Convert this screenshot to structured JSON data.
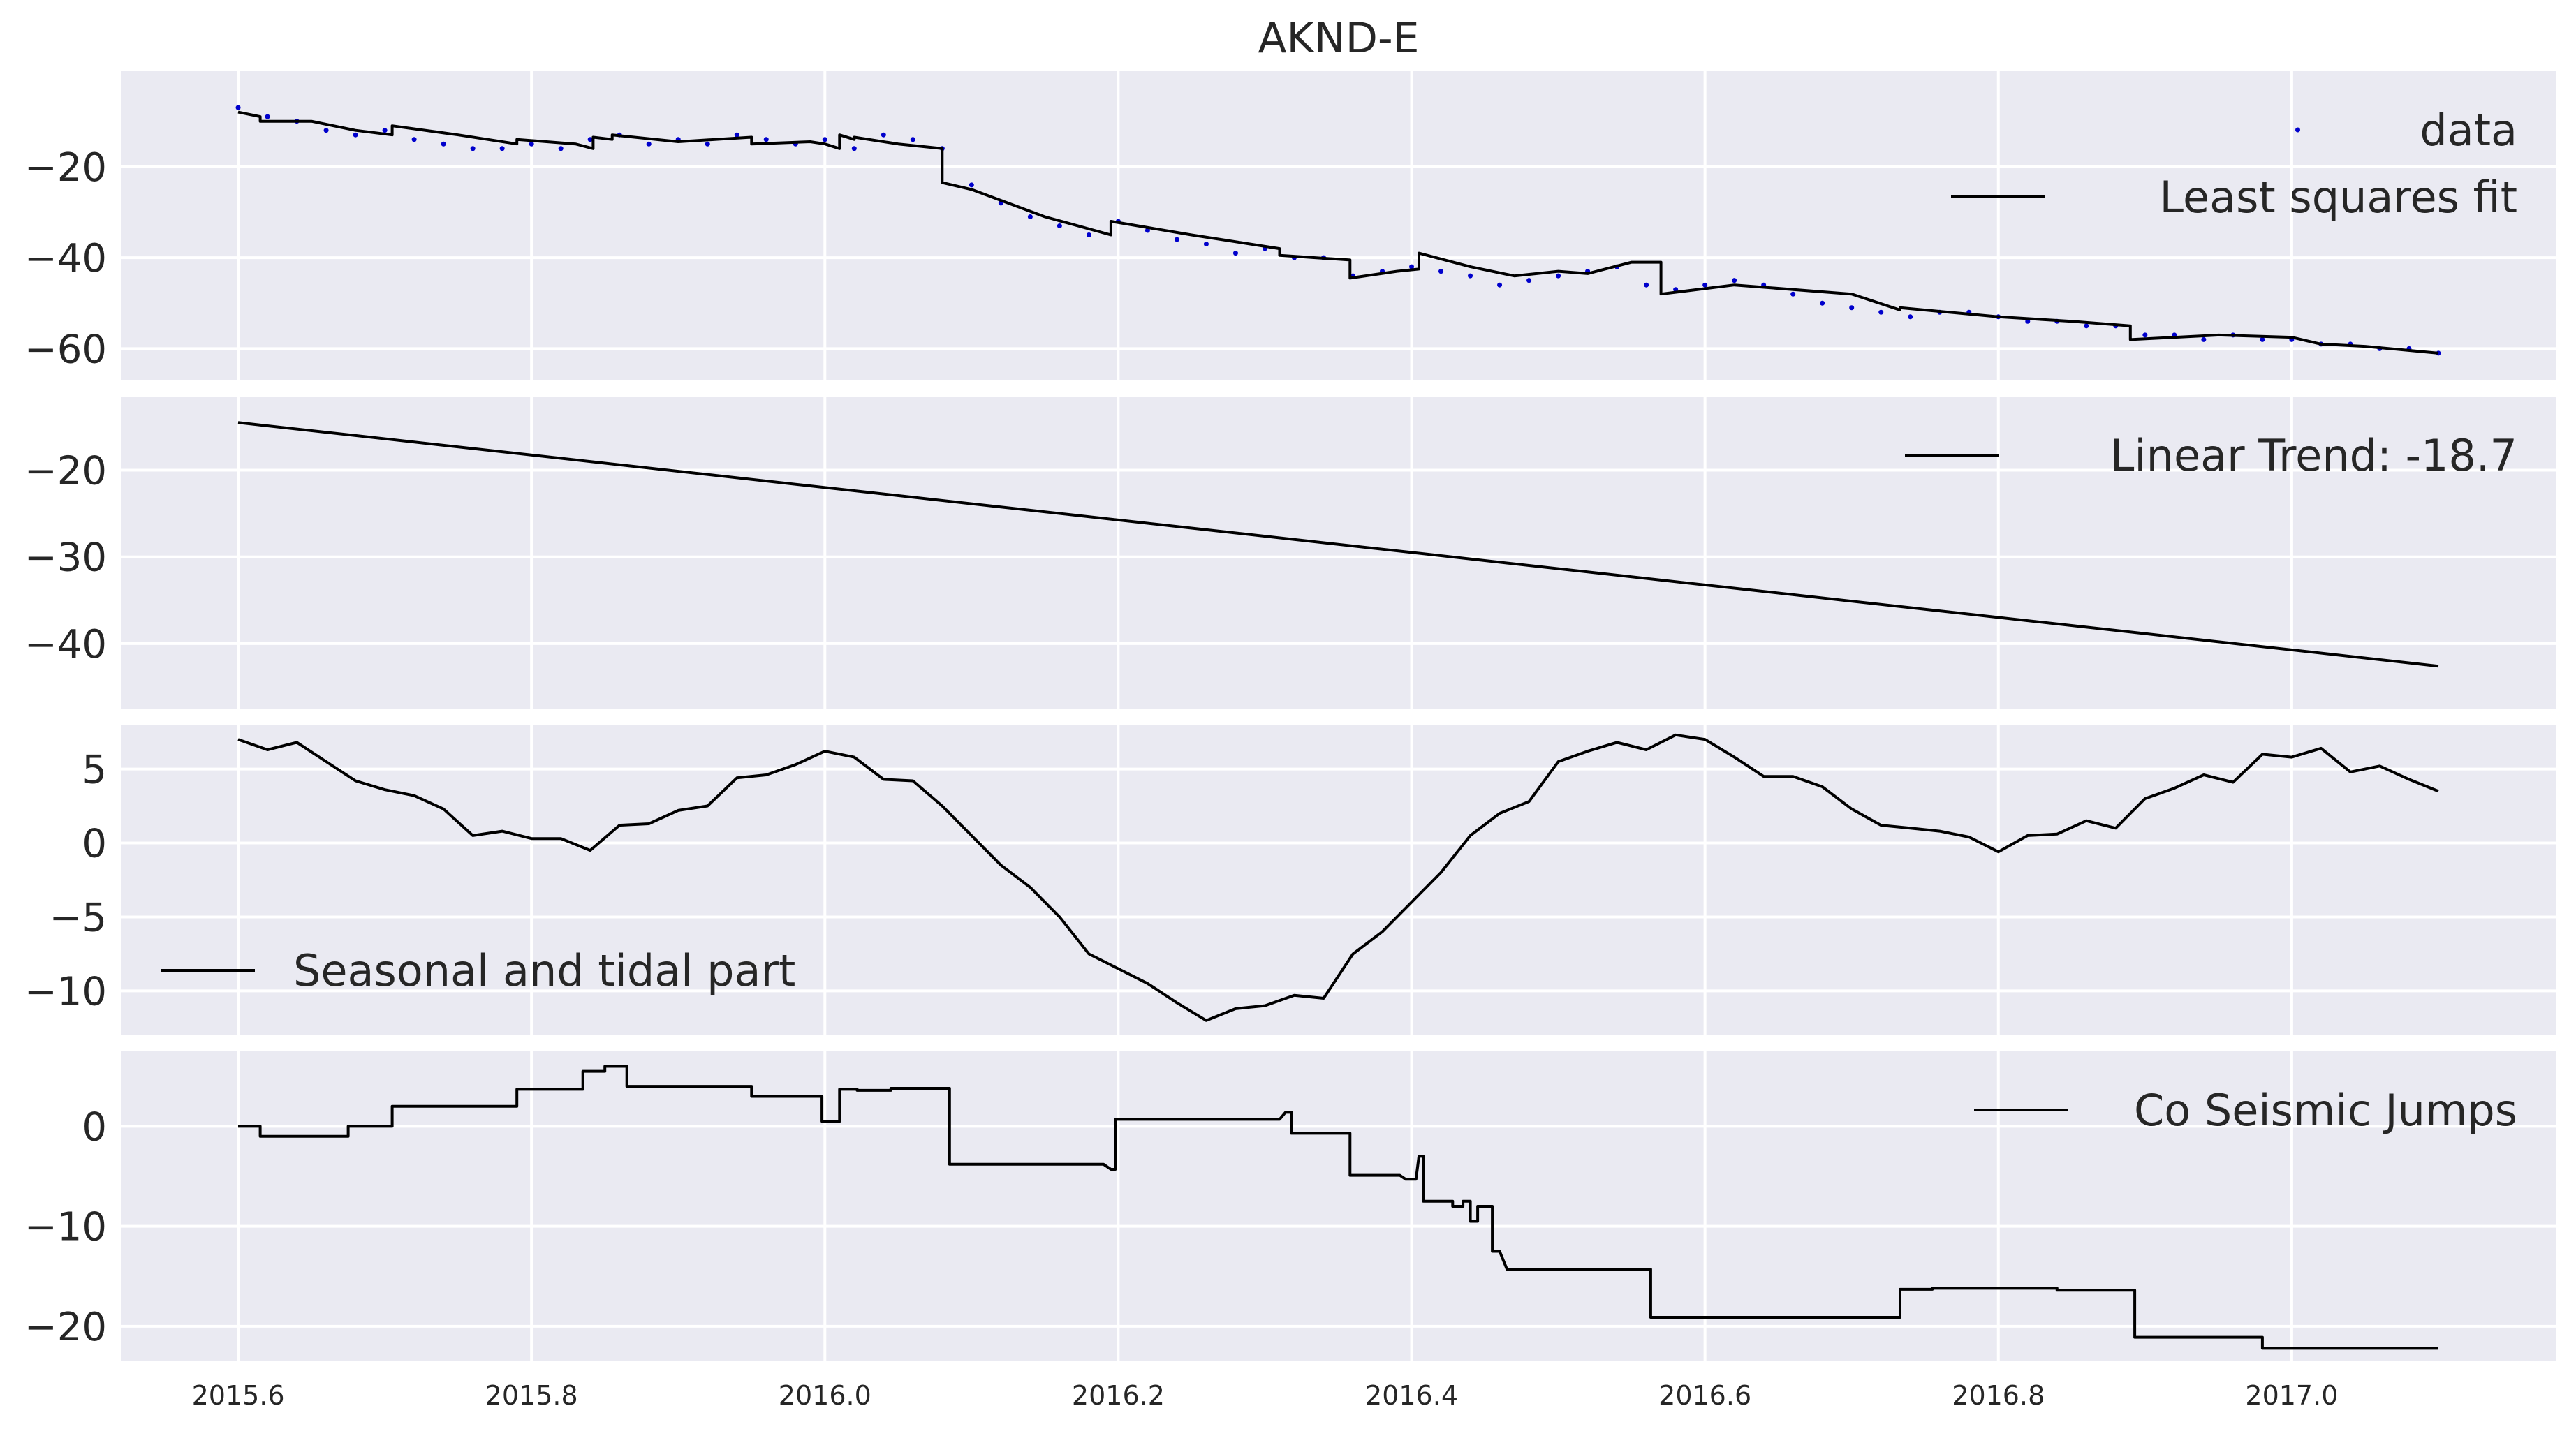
{
  "chart_data": {
    "type": "line",
    "title": "AKND-E",
    "xlim": [
      2015.52,
      2017.18
    ],
    "x_ticks": [
      2015.6,
      2015.8,
      2016.0,
      2016.2,
      2016.4,
      2016.6,
      2016.8,
      2017.0
    ],
    "x_tick_labels": [
      "2015.6",
      "2015.8",
      "2016.0",
      "2016.2",
      "2016.4",
      "2016.6",
      "2016.8",
      "2017.0"
    ],
    "grid": true,
    "colors": {
      "background": "#eaeaf2",
      "grid": "#ffffff",
      "line": "#000000",
      "data_points": "#0000cc"
    },
    "panels": [
      {
        "ylim": [
          -67,
          1
        ],
        "y_ticks": [
          -20,
          -40,
          -60
        ],
        "y_tick_labels": [
          "−20",
          "−40",
          "−60"
        ],
        "legend_position": "top-right",
        "series": [
          {
            "name": "data",
            "style": "points",
            "x": [
              2015.6,
              2015.62,
              2015.64,
              2015.66,
              2015.68,
              2015.7,
              2015.72,
              2015.74,
              2015.76,
              2015.78,
              2015.8,
              2015.82,
              2015.84,
              2015.86,
              2015.88,
              2015.9,
              2015.92,
              2015.94,
              2015.96,
              2015.98,
              2016.0,
              2016.02,
              2016.04,
              2016.06,
              2016.08,
              2016.1,
              2016.12,
              2016.14,
              2016.16,
              2016.18,
              2016.2,
              2016.22,
              2016.24,
              2016.26,
              2016.28,
              2016.3,
              2016.32,
              2016.34,
              2016.36,
              2016.38,
              2016.4,
              2016.42,
              2016.44,
              2016.46,
              2016.48,
              2016.5,
              2016.52,
              2016.54,
              2016.56,
              2016.58,
              2016.6,
              2016.62,
              2016.64,
              2016.66,
              2016.68,
              2016.7,
              2016.72,
              2016.74,
              2016.76,
              2016.78,
              2016.8,
              2016.82,
              2016.84,
              2016.86,
              2016.88,
              2016.9,
              2016.92,
              2016.94,
              2016.96,
              2016.98,
              2017.0,
              2017.02,
              2017.04,
              2017.06,
              2017.08,
              2017.1
            ],
            "values": [
              -7,
              -9,
              -10,
              -12,
              -13,
              -12,
              -14,
              -15,
              -16,
              -16,
              -15,
              -16,
              -14,
              -13,
              -15,
              -14,
              -15,
              -13,
              -14,
              -15,
              -14,
              -16,
              -13,
              -14,
              -16,
              -24,
              -28,
              -31,
              -33,
              -35,
              -32,
              -34,
              -36,
              -37,
              -39,
              -38,
              -40,
              -40,
              -44,
              -43,
              -42,
              -43,
              -44,
              -46,
              -45,
              -44,
              -43,
              -42,
              -46,
              -47,
              -46,
              -45,
              -46,
              -48,
              -50,
              -51,
              -52,
              -53,
              -52,
              -52,
              -53,
              -54,
              -54,
              -55,
              -55,
              -57,
              -57,
              -58,
              -57,
              -58,
              -58,
              -59,
              -59,
              -60,
              -60,
              -61
            ]
          },
          {
            "name": "Least squares fit",
            "style": "line",
            "x": [
              2015.6,
              2015.615,
              2015.615,
              2015.65,
              2015.68,
              2015.705,
              2015.705,
              2015.75,
              2015.79,
              2015.79,
              2015.83,
              2015.842,
              2015.842,
              2015.855,
              2015.855,
              2015.9,
              2015.95,
              2015.95,
              2015.99,
              2016.0,
              2016.01,
              2016.01,
              2016.02,
              2016.02,
              2016.05,
              2016.08,
              2016.08,
              2016.1,
              2016.15,
              2016.195,
              2016.195,
              2016.25,
              2016.31,
              2016.31,
              2016.358,
              2016.358,
              2016.39,
              2016.405,
              2016.405,
              2016.44,
              2016.47,
              2016.5,
              2016.52,
              2016.55,
              2016.57,
              2016.57,
              2016.62,
              2016.7,
              2016.733,
              2016.733,
              2016.8,
              2016.85,
              2016.89,
              2016.89,
              2016.95,
              2017.0,
              2017.02,
              2017.05,
              2017.1
            ],
            "values": [
              -8,
              -9,
              -10,
              -10,
              -12,
              -13,
              -11,
              -13,
              -15,
              -14,
              -15,
              -16,
              -13.5,
              -14,
              -13,
              -14.5,
              -13.5,
              -15,
              -14.5,
              -15,
              -16,
              -13,
              -14,
              -13.5,
              -15,
              -16,
              -23.5,
              -25,
              -31,
              -35,
              -32,
              -35,
              -38,
              -39.5,
              -40.5,
              -44.5,
              -43,
              -42.5,
              -39,
              -42,
              -44,
              -43,
              -43.5,
              -41,
              -41,
              -48,
              -46,
              -48,
              -51.5,
              -51,
              -53,
              -54,
              -55,
              -58,
              -57,
              -57.5,
              -59,
              -59.5,
              -61
            ]
          }
        ]
      },
      {
        "ylim": [
          -47.5,
          -11.5
        ],
        "y_ticks": [
          -20,
          -30,
          -40
        ],
        "y_tick_labels": [
          "−20",
          "−30",
          "−40"
        ],
        "legend_position": "top-right",
        "series": [
          {
            "name": "Linear Trend: -18.7",
            "style": "line",
            "x": [
              2015.6,
              2017.1
            ],
            "values": [
              -14.5,
              -42.6
            ]
          }
        ]
      },
      {
        "ylim": [
          -13,
          8
        ],
        "y_ticks": [
          5,
          0,
          -5,
          -10
        ],
        "y_tick_labels": [
          "5",
          "0",
          "−5",
          "−10"
        ],
        "legend_position": "center-left",
        "series": [
          {
            "name": "Seasonal and tidal part",
            "style": "line",
            "x": [
              2015.6,
              2015.62,
              2015.64,
              2015.66,
              2015.68,
              2015.7,
              2015.72,
              2015.74,
              2015.76,
              2015.78,
              2015.8,
              2015.82,
              2015.84,
              2015.86,
              2015.88,
              2015.9,
              2015.92,
              2015.94,
              2015.96,
              2015.98,
              2016.0,
              2016.02,
              2016.04,
              2016.06,
              2016.08,
              2016.1,
              2016.12,
              2016.14,
              2016.16,
              2016.18,
              2016.2,
              2016.22,
              2016.24,
              2016.26,
              2016.28,
              2016.3,
              2016.32,
              2016.34,
              2016.36,
              2016.38,
              2016.4,
              2016.42,
              2016.44,
              2016.46,
              2016.48,
              2016.5,
              2016.52,
              2016.54,
              2016.56,
              2016.58,
              2016.6,
              2016.62,
              2016.64,
              2016.66,
              2016.68,
              2016.7,
              2016.72,
              2016.74,
              2016.76,
              2016.78,
              2016.8,
              2016.82,
              2016.84,
              2016.86,
              2016.88,
              2016.9,
              2016.92,
              2016.94,
              2016.96,
              2016.98,
              2017.0,
              2017.02,
              2017.04,
              2017.06,
              2017.08,
              2017.1
            ],
            "values": [
              7,
              6.3,
              6.8,
              5.5,
              4.2,
              3.6,
              3.2,
              2.3,
              0.5,
              0.8,
              0.3,
              0.3,
              -0.5,
              1.2,
              1.3,
              2.2,
              2.5,
              4.4,
              4.6,
              5.3,
              6.2,
              5.8,
              4.3,
              4.2,
              2.5,
              0.5,
              -1.5,
              -3.0,
              -5.0,
              -7.5,
              -8.5,
              -9.5,
              -10.8,
              -12,
              -11.2,
              -11,
              -10.3,
              -10.5,
              -7.5,
              -6,
              -4,
              -2,
              0.5,
              2,
              2.8,
              5.5,
              6.2,
              6.8,
              6.3,
              7.3,
              7,
              5.8,
              4.5,
              4.5,
              3.8,
              2.3,
              1.2,
              1.0,
              0.8,
              0.4,
              -0.6,
              0.5,
              0.6,
              1.5,
              1.0,
              3.0,
              3.7,
              4.6,
              4.1,
              6.0,
              5.8,
              6.4,
              4.8,
              5.2,
              4.3,
              3.5
            ]
          }
        ]
      },
      {
        "ylim": [
          -23.5,
          7.5
        ],
        "y_ticks": [
          0,
          -10,
          -20
        ],
        "y_tick_labels": [
          "0",
          "−10",
          "−20"
        ],
        "legend_position": "top-right",
        "series": [
          {
            "name": "Co Seismic Jumps",
            "style": "line",
            "x": [
              2015.6,
              2015.615,
              2015.615,
              2015.675,
              2015.675,
              2015.705,
              2015.705,
              2015.79,
              2015.79,
              2015.835,
              2015.835,
              2015.85,
              2015.85,
              2015.865,
              2015.865,
              2015.95,
              2015.95,
              2015.998,
              2015.998,
              2016.01,
              2016.01,
              2016.022,
              2016.022,
              2016.045,
              2016.045,
              2016.085,
              2016.085,
              2016.19,
              2016.195,
              2016.198,
              2016.198,
              2016.31,
              2016.314,
              2016.318,
              2016.318,
              2016.358,
              2016.358,
              2016.392,
              2016.396,
              2016.403,
              2016.405,
              2016.408,
              2016.408,
              2016.428,
              2016.428,
              2016.435,
              2016.435,
              2016.44,
              2016.44,
              2016.445,
              2016.445,
              2016.455,
              2016.455,
              2016.46,
              2016.465,
              2016.47,
              2016.47,
              2016.563,
              2016.563,
              2016.733,
              2016.733,
              2016.755,
              2016.755,
              2016.84,
              2016.84,
              2016.893,
              2016.893,
              2016.98,
              2016.98,
              2017.1
            ],
            "values": [
              0,
              0,
              -1,
              -1,
              0,
              0,
              2,
              2,
              3.7,
              3.7,
              5.5,
              5.5,
              6,
              6,
              4,
              4,
              3,
              3,
              0.5,
              0.5,
              3.7,
              3.7,
              3.6,
              3.6,
              3.8,
              3.8,
              -3.8,
              -3.8,
              -4.3,
              -4.3,
              0.7,
              0.7,
              1.4,
              1.4,
              -0.7,
              -0.7,
              -4.9,
              -4.9,
              -5.3,
              -5.3,
              -3,
              -3,
              -7.5,
              -7.5,
              -8,
              -8,
              -7.5,
              -7.5,
              -9.5,
              -9.5,
              -8,
              -8,
              -12.5,
              -12.5,
              -14.3,
              -14.3,
              -14.3,
              -14.3,
              -19.1,
              -19.1,
              -16.3,
              -16.3,
              -16.2,
              -16.2,
              -16.4,
              -16.4,
              -21.1,
              -21.1,
              -22.2,
              -22.2
            ]
          }
        ]
      }
    ]
  }
}
